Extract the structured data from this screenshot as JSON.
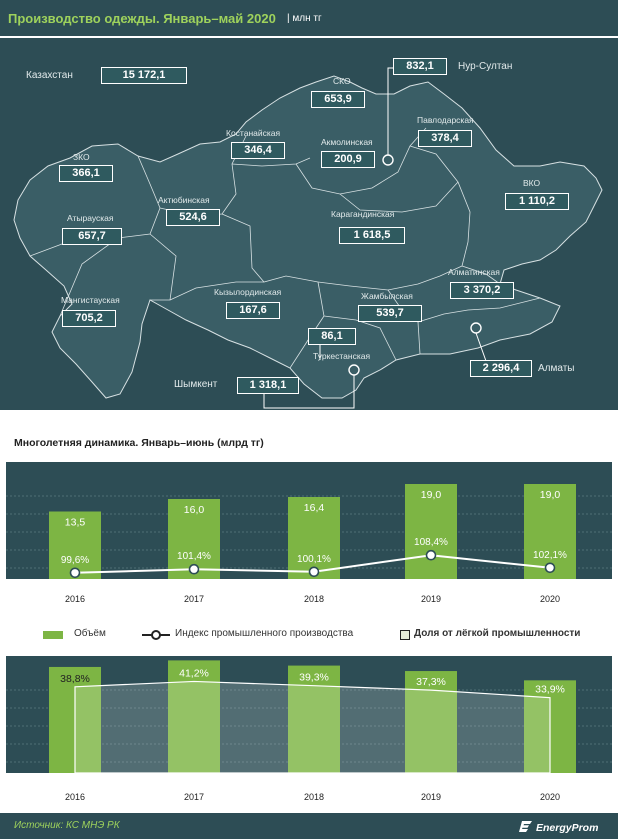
{
  "header": {
    "title": "Производство одежды. Январь–май 2020",
    "unit": "| млн тг"
  },
  "map": {
    "country": {
      "name": "Казахстан",
      "value": "15 172,1"
    },
    "cities": [
      {
        "name": "Нур-Султан",
        "value": "832,1"
      },
      {
        "name": "Шымкент",
        "value": "1 318,1"
      },
      {
        "name": "Алматы",
        "value": "2 296,4"
      }
    ],
    "regions": [
      {
        "name": "ЗКО",
        "value": "366,1"
      },
      {
        "name": "Атырауская",
        "value": "657,7"
      },
      {
        "name": "Мангистауская",
        "value": "705,2"
      },
      {
        "name": "Актюбинская",
        "value": "524,6"
      },
      {
        "name": "Костанайская",
        "value": "346,4"
      },
      {
        "name": "СКО",
        "value": "653,9"
      },
      {
        "name": "Акмолинская",
        "value": "200,9"
      },
      {
        "name": "Павлодарская",
        "value": "378,4"
      },
      {
        "name": "ВКО",
        "value": "1 110,2"
      },
      {
        "name": "Карагандинская",
        "value": "1 618,5"
      },
      {
        "name": "Кызылординская",
        "value": "167,6"
      },
      {
        "name": "Жамбылская",
        "value": "539,7"
      },
      {
        "name": "Алматинская",
        "value": "3 370,2"
      },
      {
        "name": "Туркестанская",
        "value": "86,1"
      }
    ]
  },
  "chart_data": [
    {
      "type": "bar",
      "title": "Многолетняя  динамика.  Январь–июнь  (млрд тг)",
      "categories": [
        "2016",
        "2017",
        "2018",
        "2019",
        "2020"
      ],
      "series": [
        {
          "name": "Объём",
          "values": [
            13.5,
            16.0,
            16.4,
            19.0,
            19.0
          ],
          "labels": [
            "13,5",
            "16,0",
            "16,4",
            "19,0",
            "19,0"
          ],
          "color": "#7db544"
        },
        {
          "name": "Индекс промышленного производства",
          "type": "line",
          "values": [
            99.6,
            101.4,
            100.1,
            108.4,
            102.1
          ],
          "labels": [
            "99,6%",
            "101,4%",
            "100,1%",
            "108,4%",
            "102,1%"
          ],
          "color": "#ffffff"
        }
      ]
    },
    {
      "type": "bar",
      "categories": [
        "2016",
        "2017",
        "2018",
        "2019",
        "2020"
      ],
      "series": [
        {
          "name": "Доля от лёгкой промышленности",
          "values": [
            38.8,
            41.2,
            39.3,
            37.3,
            33.9
          ],
          "labels": [
            "38,8%",
            "41,2%",
            "39,3%",
            "37,3%",
            "33,9%"
          ],
          "color": "#7db544"
        }
      ]
    }
  ],
  "legend": {
    "volume": "Объём",
    "index": "Индекс промышленного производства",
    "share": "Доля от лёгкой промышленности"
  },
  "footer": {
    "source": "Источник: КС МНЭ РК",
    "brand": "EnergyProm"
  },
  "colors": {
    "panel": "#2d4d55",
    "map": "#3a5e66",
    "accent": "#9ed25c",
    "bar": "#7db544"
  }
}
